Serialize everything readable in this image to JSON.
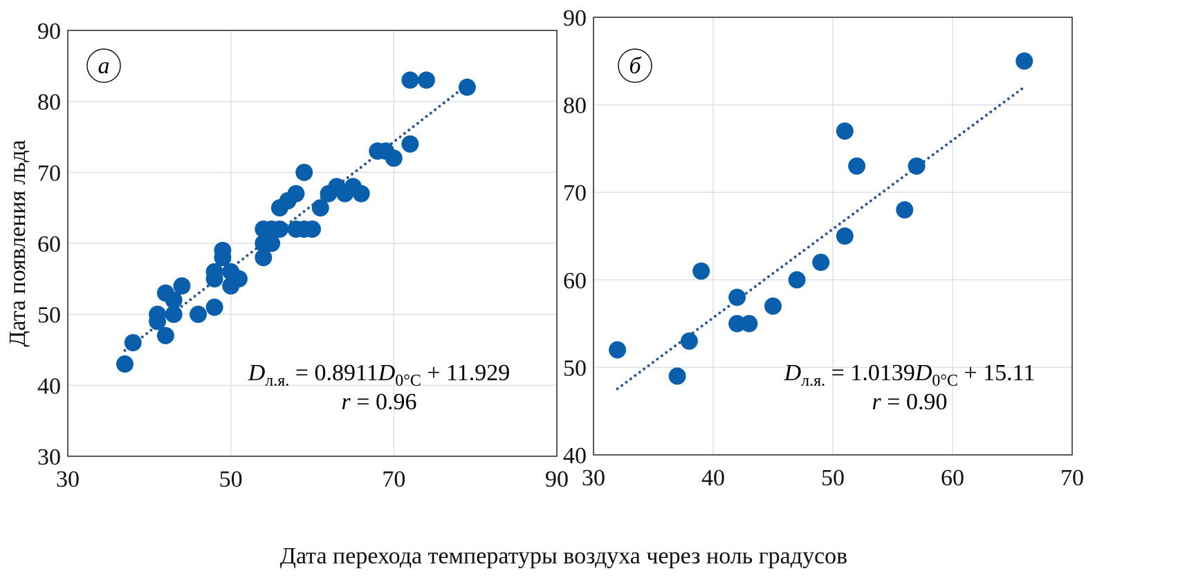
{
  "chart_data": [
    {
      "type": "scatter",
      "panel_label": "а",
      "xlim": [
        30,
        90
      ],
      "ylim": [
        30,
        90
      ],
      "xticks": [
        30,
        50,
        70,
        90
      ],
      "yticks": [
        30,
        40,
        50,
        60,
        70,
        80,
        90
      ],
      "grid": true,
      "marker_color": "#0a5fac",
      "trend_color": "#2a5590",
      "points": [
        [
          37,
          43
        ],
        [
          38,
          46
        ],
        [
          41,
          49
        ],
        [
          41,
          50
        ],
        [
          42,
          47
        ],
        [
          42,
          53
        ],
        [
          43,
          50
        ],
        [
          43,
          52
        ],
        [
          44,
          54
        ],
        [
          46,
          50
        ],
        [
          48,
          51
        ],
        [
          48,
          55
        ],
        [
          48,
          56
        ],
        [
          49,
          58
        ],
        [
          49,
          59
        ],
        [
          50,
          54
        ],
        [
          50,
          56
        ],
        [
          51,
          55
        ],
        [
          54,
          58
        ],
        [
          54,
          60
        ],
        [
          54,
          62
        ],
        [
          55,
          60
        ],
        [
          55,
          62
        ],
        [
          56,
          62
        ],
        [
          56,
          65
        ],
        [
          57,
          66
        ],
        [
          58,
          67
        ],
        [
          58,
          62
        ],
        [
          59,
          62
        ],
        [
          60,
          62
        ],
        [
          59,
          70
        ],
        [
          61,
          65
        ],
        [
          62,
          67
        ],
        [
          63,
          68
        ],
        [
          64,
          67
        ],
        [
          65,
          68
        ],
        [
          66,
          67
        ],
        [
          68,
          73
        ],
        [
          69,
          73
        ],
        [
          70,
          72
        ],
        [
          72,
          74
        ],
        [
          72,
          83
        ],
        [
          74,
          83
        ],
        [
          79,
          82
        ]
      ],
      "trendline": {
        "slope": 0.8911,
        "intercept": 11.929,
        "x_range": [
          37,
          79
        ],
        "style": "dotted"
      },
      "equation": {
        "lhs": "D",
        "lhs_sub": "л.я.",
        "mid": " = 0.8911",
        "var": "D",
        "var_sub": "0°C",
        "rhs": " + 11.929"
      },
      "r_text": {
        "r": "r",
        "value": " = 0.96"
      }
    },
    {
      "type": "scatter",
      "panel_label": "б",
      "xlim": [
        30,
        70
      ],
      "ylim": [
        40,
        90
      ],
      "xticks": [
        30,
        40,
        50,
        60,
        70
      ],
      "yticks": [
        40,
        50,
        60,
        70,
        80,
        90
      ],
      "grid": true,
      "marker_color": "#0a5fac",
      "trend_color": "#2a5590",
      "points": [
        [
          32,
          52
        ],
        [
          37,
          49
        ],
        [
          38,
          53
        ],
        [
          39,
          61
        ],
        [
          42,
          58
        ],
        [
          42,
          55
        ],
        [
          43,
          55
        ],
        [
          45,
          57
        ],
        [
          47,
          60
        ],
        [
          49,
          62
        ],
        [
          51,
          77
        ],
        [
          51,
          65
        ],
        [
          52,
          73
        ],
        [
          56,
          68
        ],
        [
          57,
          73
        ],
        [
          66,
          85
        ]
      ],
      "trendline": {
        "slope": 1.0139,
        "intercept": 15.11,
        "x_range": [
          32,
          66
        ],
        "style": "dotted"
      },
      "equation": {
        "lhs": "D",
        "lhs_sub": "л.я.",
        "mid": " = 1.0139",
        "var": "D",
        "var_sub": "0°C",
        "rhs": " + 15.11"
      },
      "r_text": {
        "r": "r",
        "value": " = 0.90"
      }
    }
  ],
  "ylabel": "Дата появления льда",
  "xlabel": "Дата перехода температуры воздуха через ноль градусов"
}
